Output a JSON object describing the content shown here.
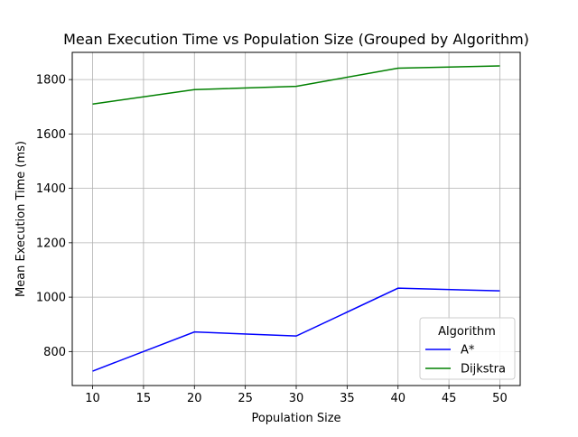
{
  "chart_data": {
    "type": "line",
    "title": "Mean Execution Time vs Population Size (Grouped by Algorithm)",
    "xlabel": "Population Size",
    "ylabel": "Mean Execution Time (ms)",
    "xlim": [
      8,
      52
    ],
    "ylim": [
      675,
      1900
    ],
    "x_ticks": [
      10,
      15,
      20,
      25,
      30,
      35,
      40,
      45,
      50
    ],
    "y_ticks": [
      800,
      1000,
      1200,
      1400,
      1600,
      1800
    ],
    "x": [
      10,
      20,
      30,
      40,
      50
    ],
    "grid": true,
    "legend": {
      "title": "Algorithm",
      "placement": "lower-right"
    },
    "series": [
      {
        "name": "A*",
        "color": "#0000ff",
        "values": [
          728,
          872,
          857,
          1033,
          1023
        ]
      },
      {
        "name": "Dijkstra",
        "color": "#008000",
        "values": [
          1710,
          1763,
          1775,
          1842,
          1850
        ]
      }
    ]
  }
}
